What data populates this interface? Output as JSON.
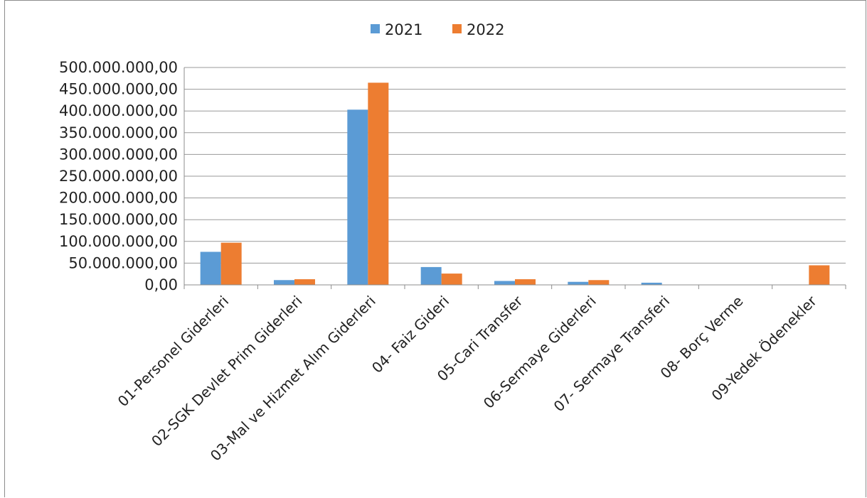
{
  "chart_data": {
    "type": "bar",
    "categories": [
      "01-Personel Giderleri",
      "02-SGK Devlet Prim Giderleri",
      "03-Mal ve Hizmet Alım Giderleri",
      "04- Faiz Gideri",
      "05-Cari Transfer",
      "06-Sermaye Giderleri",
      "07- Sermaye Transferi",
      "08- Borç Verme",
      "09-Yedek Ödenekler"
    ],
    "series": [
      {
        "name": "2021",
        "color": "#5b9bd5",
        "values": [
          76000000,
          11000000,
          403000000,
          41000000,
          9000000,
          7000000,
          5000000,
          0,
          0
        ]
      },
      {
        "name": "2022",
        "color": "#ed7d31",
        "values": [
          97000000,
          13000000,
          465000000,
          26000000,
          13000000,
          11000000,
          0,
          0,
          45000000
        ]
      }
    ],
    "ylim": [
      0,
      500000000
    ],
    "yticks": [
      0,
      50000000,
      100000000,
      150000000,
      200000000,
      250000000,
      300000000,
      350000000,
      400000000,
      450000000,
      500000000
    ],
    "ytick_labels": [
      "0,00",
      "50.000.000,00",
      "100.000.000,00",
      "150.000.000,00",
      "200.000.000,00",
      "250.000.000,00",
      "300.000.000,00",
      "350.000.000,00",
      "400.000.000,00",
      "450.000.000,00",
      "500.000.000,00"
    ],
    "grid": true,
    "legend": "top"
  }
}
